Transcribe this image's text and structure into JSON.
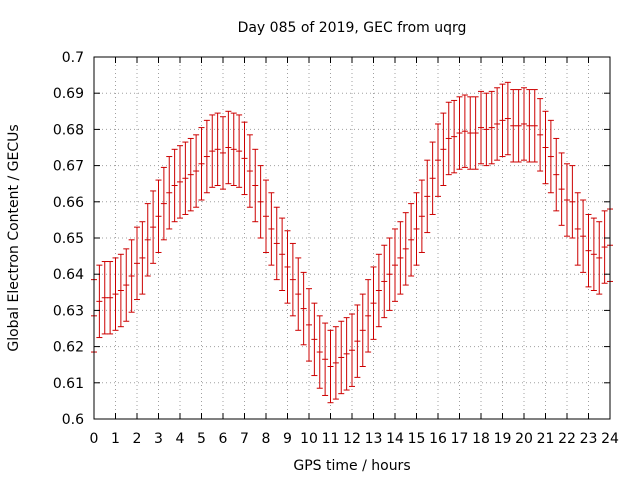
{
  "chart_data": {
    "type": "scatter",
    "title": "Day 085 of 2019, GEC from uqrg",
    "xlabel": "GPS time / hours",
    "ylabel": "Global Electron Content / GECUs",
    "xlim": [
      0,
      24
    ],
    "ylim": [
      0.6,
      0.7
    ],
    "grid": true,
    "x_ticks": [
      "0",
      "1",
      "2",
      "3",
      "4",
      "5",
      "6",
      "7",
      "8",
      "9",
      "10",
      "11",
      "12",
      "13",
      "14",
      "15",
      "16",
      "17",
      "18",
      "19",
      "20",
      "21",
      "22",
      "23",
      "24"
    ],
    "y_ticks": [
      "0.6",
      "0.61",
      "0.62",
      "0.63",
      "0.64",
      "0.65",
      "0.66",
      "0.67",
      "0.68",
      "0.69",
      "0.7"
    ],
    "series": [
      {
        "name": "GEC",
        "color": "#cc0000",
        "error": 0.01,
        "x": [
          0.0,
          0.25,
          0.5,
          0.75,
          1.0,
          1.25,
          1.5,
          1.75,
          2.0,
          2.25,
          2.5,
          2.75,
          3.0,
          3.25,
          3.5,
          3.75,
          4.0,
          4.25,
          4.5,
          4.75,
          5.0,
          5.25,
          5.5,
          5.75,
          6.0,
          6.25,
          6.5,
          6.75,
          7.0,
          7.25,
          7.5,
          7.75,
          8.0,
          8.25,
          8.5,
          8.75,
          9.0,
          9.25,
          9.5,
          9.75,
          10.0,
          10.25,
          10.5,
          10.75,
          11.0,
          11.25,
          11.5,
          11.75,
          12.0,
          12.25,
          12.5,
          12.75,
          13.0,
          13.25,
          13.5,
          13.75,
          14.0,
          14.25,
          14.5,
          14.75,
          15.0,
          15.25,
          15.5,
          15.75,
          16.0,
          16.25,
          16.5,
          16.75,
          17.0,
          17.25,
          17.5,
          17.75,
          18.0,
          18.25,
          18.5,
          18.75,
          19.0,
          19.25,
          19.5,
          19.75,
          20.0,
          20.25,
          20.5,
          20.75,
          21.0,
          21.25,
          21.5,
          21.75,
          22.0,
          22.25,
          22.5,
          22.75,
          23.0,
          23.25,
          23.5,
          23.75,
          24.0
        ],
        "values": [
          0.6285,
          0.6325,
          0.6335,
          0.6335,
          0.6345,
          0.6355,
          0.637,
          0.6395,
          0.643,
          0.6445,
          0.6495,
          0.653,
          0.656,
          0.6595,
          0.6625,
          0.6645,
          0.6655,
          0.6665,
          0.6675,
          0.6685,
          0.6705,
          0.6725,
          0.674,
          0.6745,
          0.6735,
          0.675,
          0.6745,
          0.674,
          0.672,
          0.6685,
          0.6645,
          0.66,
          0.656,
          0.6525,
          0.6485,
          0.6455,
          0.642,
          0.6385,
          0.6345,
          0.6305,
          0.626,
          0.622,
          0.6185,
          0.6165,
          0.6145,
          0.6155,
          0.617,
          0.618,
          0.619,
          0.6215,
          0.6245,
          0.6285,
          0.632,
          0.6355,
          0.638,
          0.64,
          0.6425,
          0.6445,
          0.647,
          0.6495,
          0.6525,
          0.656,
          0.6615,
          0.6665,
          0.6715,
          0.6745,
          0.6775,
          0.678,
          0.679,
          0.6795,
          0.679,
          0.679,
          0.6805,
          0.68,
          0.6805,
          0.6815,
          0.6825,
          0.683,
          0.681,
          0.681,
          0.6815,
          0.681,
          0.681,
          0.6785,
          0.675,
          0.6725,
          0.6675,
          0.6635,
          0.6605,
          0.66,
          0.6525,
          0.6505,
          0.6465,
          0.6455,
          0.6445,
          0.6475,
          0.648
        ]
      }
    ]
  }
}
